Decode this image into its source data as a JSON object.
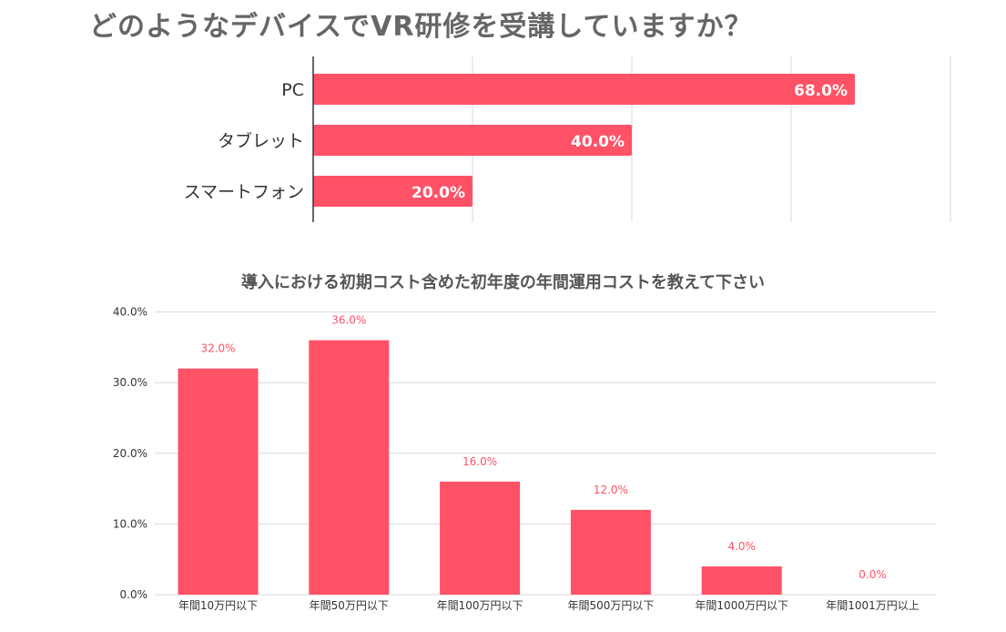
{
  "chart_data": [
    {
      "type": "bar",
      "orientation": "horizontal",
      "title": "どのようなデバイスでVR研修を受講していますか？",
      "categories": [
        "PC",
        "タブレット",
        "スマートフォン"
      ],
      "values": [
        68.0,
        40.0,
        20.0
      ],
      "value_labels": [
        "68.0%",
        "40.0%",
        "20.0%"
      ],
      "xlim": [
        0,
        80
      ],
      "grid": true,
      "colors": {
        "bar": "#ff5266"
      }
    },
    {
      "type": "bar",
      "orientation": "vertical",
      "title": "導入における初期コスト含めた初年度の年間運用コストを教えて下さい",
      "categories": [
        "年間10万円以下",
        "年間50万円以下",
        "年間100万円以下",
        "年間500万円以下",
        "年間1000万円以下",
        "年間1001万円以上"
      ],
      "values": [
        32.0,
        36.0,
        16.0,
        12.0,
        4.0,
        0.0
      ],
      "value_labels": [
        "32.0%",
        "36.0%",
        "16.0%",
        "12.0%",
        "4.0%",
        "0.0%"
      ],
      "yticks": [
        "0.0%",
        "10.0%",
        "20.0%",
        "30.0%",
        "40.0%"
      ],
      "ylim": [
        0,
        40
      ],
      "grid": true,
      "colors": {
        "bar": "#ff5266",
        "data_label": "#ff5266"
      }
    }
  ]
}
